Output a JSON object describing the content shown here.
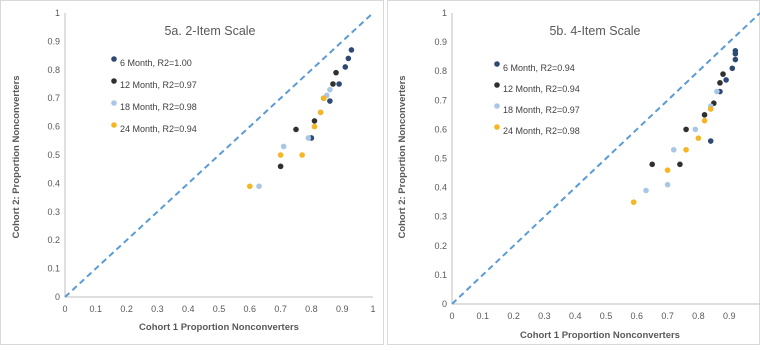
{
  "chart_data": [
    {
      "type": "scatter",
      "title": "5a. 2-Item Scale",
      "xlabel": "Cohort 1 Proportion Nonconverters",
      "ylabel": "Cohort 2: Proportion Nonconverters",
      "xlim": [
        0,
        1
      ],
      "ylim": [
        0,
        1
      ],
      "xticks": [
        "0",
        "0.1",
        "0.2",
        "0.3",
        "0.4",
        "0.5",
        "0.6",
        "0.7",
        "0.8",
        "0.9",
        "1"
      ],
      "yticks": [
        "0",
        "0.1",
        "0.2",
        "0.3",
        "0.4",
        "0.5",
        "0.6",
        "0.7",
        "0.8",
        "0.9",
        "1"
      ],
      "xtick_values": [
        0,
        0.1,
        0.2,
        0.3,
        0.4,
        0.5,
        0.6,
        0.7,
        0.8,
        0.9,
        1
      ],
      "ytick_values": [
        0,
        0.1,
        0.2,
        0.3,
        0.4,
        0.5,
        0.6,
        0.7,
        0.8,
        0.9,
        1
      ],
      "grid": false,
      "legend_position": "upper-left",
      "diagonal_line": true,
      "series": [
        {
          "name": "6 Month, R2=1.00",
          "color": "#2e4a73",
          "points": [
            [
              0.8,
              0.56
            ],
            [
              0.86,
              0.69
            ],
            [
              0.89,
              0.75
            ],
            [
              0.91,
              0.81
            ],
            [
              0.92,
              0.84
            ],
            [
              0.93,
              0.87
            ]
          ]
        },
        {
          "name": "12 Month, R2=0.97",
          "color": "#303030",
          "points": [
            [
              0.7,
              0.46
            ],
            [
              0.75,
              0.59
            ],
            [
              0.81,
              0.62
            ],
            [
              0.84,
              0.7
            ],
            [
              0.87,
              0.75
            ],
            [
              0.88,
              0.79
            ]
          ]
        },
        {
          "name": "18 Month, R2=0.98",
          "color": "#a9c6e8",
          "points": [
            [
              0.63,
              0.39
            ],
            [
              0.71,
              0.53
            ],
            [
              0.79,
              0.56
            ],
            [
              0.83,
              0.65
            ],
            [
              0.85,
              0.71
            ],
            [
              0.86,
              0.73
            ]
          ]
        },
        {
          "name": "24 Month, R2=0.94",
          "color": "#f5b622",
          "points": [
            [
              0.6,
              0.39
            ],
            [
              0.7,
              0.5
            ],
            [
              0.77,
              0.5
            ],
            [
              0.81,
              0.6
            ],
            [
              0.83,
              0.65
            ],
            [
              0.84,
              0.7
            ]
          ]
        }
      ]
    },
    {
      "type": "scatter",
      "title": "5b. 4-Item Scale",
      "xlabel": "Cohort 1 Proportion Nonconverters",
      "ylabel": "Cohort 2: Proportion Nonconverters",
      "xlim": [
        0,
        1
      ],
      "ylim": [
        0,
        1
      ],
      "xticks": [
        "0",
        "0.1",
        "0.2",
        "0.3",
        "0.4",
        "0.5",
        "0.6",
        "0.7",
        "0.8",
        "0.9"
      ],
      "yticks": [
        "0",
        "0.1",
        "0.2",
        "0.3",
        "0.4",
        "0.5",
        "0.6",
        "0.7",
        "0.8",
        "0.9",
        "1"
      ],
      "xtick_values": [
        0,
        0.1,
        0.2,
        0.3,
        0.4,
        0.5,
        0.6,
        0.7,
        0.8,
        0.9
      ],
      "ytick_values": [
        0,
        0.1,
        0.2,
        0.3,
        0.4,
        0.5,
        0.6,
        0.7,
        0.8,
        0.9,
        1
      ],
      "grid": false,
      "legend_position": "upper-left",
      "diagonal_line": true,
      "series": [
        {
          "name": "6 Month, R2=0.94",
          "color": "#2e4a73",
          "points": [
            [
              0.84,
              0.56
            ],
            [
              0.87,
              0.73
            ],
            [
              0.89,
              0.77
            ],
            [
              0.91,
              0.81
            ],
            [
              0.92,
              0.84
            ],
            [
              0.92,
              0.86
            ],
            [
              0.92,
              0.87
            ]
          ]
        },
        {
          "name": "12 Month, R2=0.94",
          "color": "#303030",
          "points": [
            [
              0.65,
              0.48
            ],
            [
              0.74,
              0.48
            ],
            [
              0.76,
              0.6
            ],
            [
              0.82,
              0.65
            ],
            [
              0.85,
              0.69
            ],
            [
              0.87,
              0.76
            ],
            [
              0.88,
              0.79
            ]
          ]
        },
        {
          "name": "18 Month, R2=0.97",
          "color": "#a9c6e8",
          "points": [
            [
              0.63,
              0.39
            ],
            [
              0.7,
              0.41
            ],
            [
              0.72,
              0.53
            ],
            [
              0.79,
              0.6
            ],
            [
              0.84,
              0.68
            ],
            [
              0.86,
              0.73
            ]
          ]
        },
        {
          "name": "24 Month, R2=0.98",
          "color": "#f5b622",
          "points": [
            [
              0.59,
              0.35
            ],
            [
              0.7,
              0.46
            ],
            [
              0.76,
              0.53
            ],
            [
              0.8,
              0.57
            ],
            [
              0.82,
              0.63
            ],
            [
              0.84,
              0.67
            ]
          ]
        }
      ]
    }
  ]
}
